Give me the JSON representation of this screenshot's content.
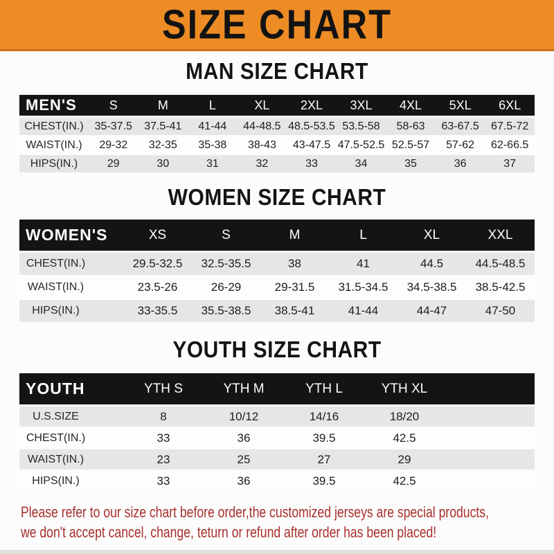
{
  "banner": {
    "title": "SIZE CHART"
  },
  "chart_data": [
    {
      "type": "table",
      "title": "MAN SIZE CHART",
      "columns": [
        "MEN'S",
        "S",
        "M",
        "L",
        "XL",
        "2XL",
        "3XL",
        "4XL",
        "5XL",
        "6XL"
      ],
      "filler_column": false,
      "rows": [
        [
          "CHEST(IN.)",
          "35-37.5",
          "37.5-41",
          "41-44",
          "44-48.5",
          "48.5-53.5",
          "53.5-58",
          "58-63",
          "63-67.5",
          "67.5-72"
        ],
        [
          "WAIST(IN.)",
          "29-32",
          "32-35",
          "35-38",
          "38-43",
          "43-47.5",
          "47.5-52.5",
          "52.5-57",
          "57-62",
          "62-66.5"
        ],
        [
          "HIPS(IN.)",
          "29",
          "30",
          "31",
          "32",
          "33",
          "34",
          "35",
          "36",
          "37"
        ]
      ]
    },
    {
      "type": "table",
      "title": "WOMEN SIZE CHART",
      "columns": [
        "WOMEN'S",
        "XS",
        "S",
        "M",
        "L",
        "XL",
        "XXL"
      ],
      "filler_column": false,
      "rows": [
        [
          "CHEST(IN.)",
          "29.5-32.5",
          "32.5-35.5",
          "38",
          "41",
          "44.5",
          "44.5-48.5"
        ],
        [
          "WAIST(IN.)",
          "23.5-26",
          "26-29",
          "29-31.5",
          "31.5-34.5",
          "34.5-38.5",
          "38.5-42.5"
        ],
        [
          "HIPS(IN.)",
          "33-35.5",
          "35.5-38.5",
          "38.5-41",
          "41-44",
          "44-47",
          "47-50"
        ]
      ]
    },
    {
      "type": "table",
      "title": "YOUTH SIZE CHART",
      "columns": [
        "YOUTH",
        "YTH S",
        "YTH M",
        "YTH L",
        "YTH XL"
      ],
      "filler_column": true,
      "rows": [
        [
          "U.S.SIZE",
          "8",
          "10/12",
          "14/16",
          "18/20"
        ],
        [
          "CHEST(IN.)",
          "33",
          "36",
          "39.5",
          "42.5"
        ],
        [
          "WAIST(IN.)",
          "23",
          "25",
          "27",
          "29"
        ],
        [
          "HIPS(IN.)",
          "33",
          "36",
          "39.5",
          "42.5"
        ]
      ]
    }
  ],
  "footer": {
    "line1": "Please refer to our size chart before order,the customized jerseys are special products,",
    "line2": "we don't accept cancel, change, teturn or refund after order has been placed!"
  },
  "colors": {
    "banner_bg": "#ED8C25",
    "banner_border": "#C9701D",
    "header_bar": "#151413",
    "row_alt_gray": "#E7E6E4",
    "notice_red": "#A7302C",
    "text_black": "#141414",
    "bottom_strip": "#E2E0DD"
  }
}
